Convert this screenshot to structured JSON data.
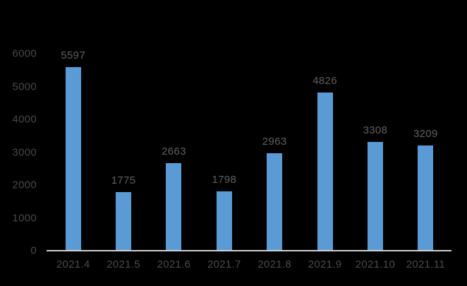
{
  "chart_data": {
    "type": "bar",
    "title": "",
    "categories": [
      "2021.4",
      "2021.5",
      "2021.6",
      "2021.7",
      "2021.8",
      "2021.9",
      "2021.10",
      "2021.11"
    ],
    "values": [
      5597,
      1775,
      2663,
      1798,
      2963,
      4826,
      3308,
      3209
    ],
    "data_labels": [
      "5597",
      "1775",
      "2663",
      "1798",
      "2963",
      "4826",
      "3308",
      "3209"
    ],
    "yticks": [
      0,
      1000,
      2000,
      3000,
      4000,
      5000,
      6000
    ],
    "ytick_labels": [
      "0",
      "1000",
      "2000",
      "3000",
      "4000",
      "5000",
      "6000"
    ],
    "ylim": [
      0,
      6000
    ],
    "xlabel": "",
    "ylabel": "",
    "grid": false,
    "legend": "none",
    "colors": {
      "background": "#000000",
      "bar": "#5b9bd5",
      "axis_line": "#d0d0d0",
      "ytick_label": "#484848",
      "xtick_label": "#4a4a4a",
      "data_label": "#606060"
    }
  }
}
